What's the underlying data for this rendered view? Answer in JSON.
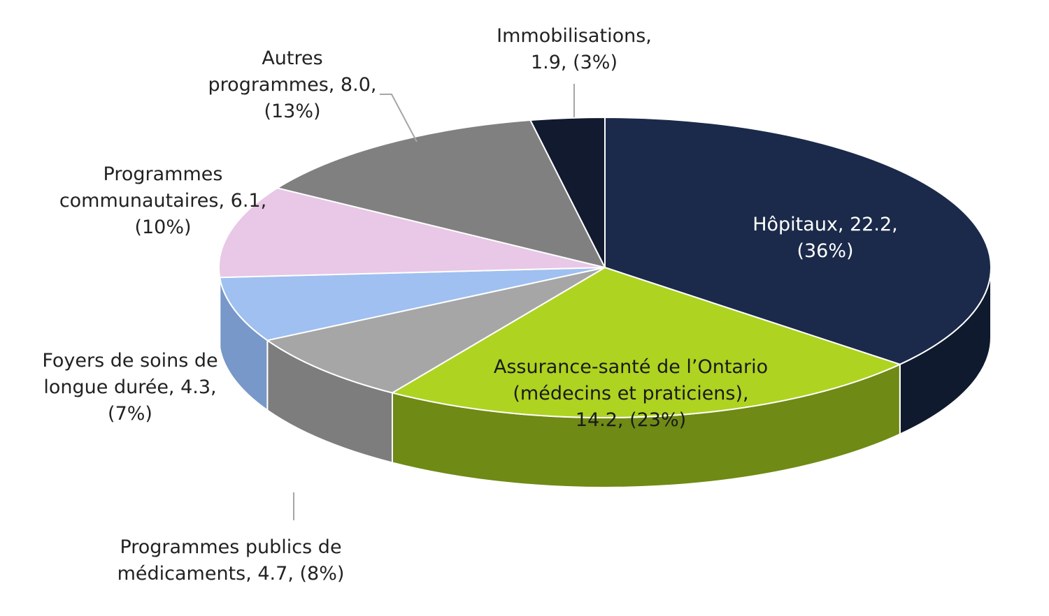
{
  "chart_data": {
    "type": "pie",
    "title": "",
    "unit_note": "",
    "slices": [
      {
        "name": "Hôpitaux",
        "value": 22.2,
        "percent": "36%",
        "label_lines": [
          "Hôpitaux, 22.2,",
          "(36%)"
        ],
        "color": "#1b2a4a",
        "side_color": "#101a2e",
        "label_color": "#ffffff",
        "label_inside": true
      },
      {
        "name": "Assurance-santé de l’Ontario (médecins et praticiens)",
        "value": 14.2,
        "percent": "23%",
        "label_lines": [
          "Assurance-santé de l’Ontario",
          "(médecins et praticiens),",
          "14.2, (23%)"
        ],
        "color": "#aed321",
        "side_color": "#6f8a15",
        "label_color": "#1a1a1a",
        "label_inside": true
      },
      {
        "name": "Programmes publics de médicaments",
        "value": 4.7,
        "percent": "8%",
        "label_lines": [
          "Programmes publics de",
          "médicaments, 4.7, (8%)"
        ],
        "color": "#a6a6a6",
        "side_color": "#7d7d7d",
        "label_color": "#222222",
        "label_inside": false
      },
      {
        "name": "Foyers de soins de longue durée",
        "value": 4.3,
        "percent": "7%",
        "label_lines": [
          "Foyers de soins de",
          "longue durée, 4.3,",
          "(7%)"
        ],
        "color": "#9fc0f0",
        "side_color": "#7798c8",
        "label_color": "#222222",
        "label_inside": false
      },
      {
        "name": "Programmes communautaires",
        "value": 6.1,
        "percent": "10%",
        "label_lines": [
          "Programmes",
          "communautaires, 6.1,",
          "(10%)"
        ],
        "color": "#e8c8e6",
        "side_color": "#c7a6c5",
        "label_color": "#222222",
        "label_inside": false
      },
      {
        "name": "Autres programmes",
        "value": 8.0,
        "percent": "13%",
        "label_lines": [
          "Autres",
          "programmes, 8.0,",
          "(13%)"
        ],
        "color": "#808080",
        "side_color": "#5e5e5e",
        "label_color": "#222222",
        "label_inside": false
      },
      {
        "name": "Immobilisations",
        "value": 1.9,
        "percent": "3%",
        "label_lines": [
          "Immobilisations,",
          "1.9, (3%)"
        ],
        "color": "#111a2e",
        "side_color": "#0a1020",
        "label_color": "#222222",
        "label_inside": false
      }
    ],
    "start_at": "top, clockwise",
    "style": "3d-tilted",
    "legend": "none (data labels on slices)"
  }
}
